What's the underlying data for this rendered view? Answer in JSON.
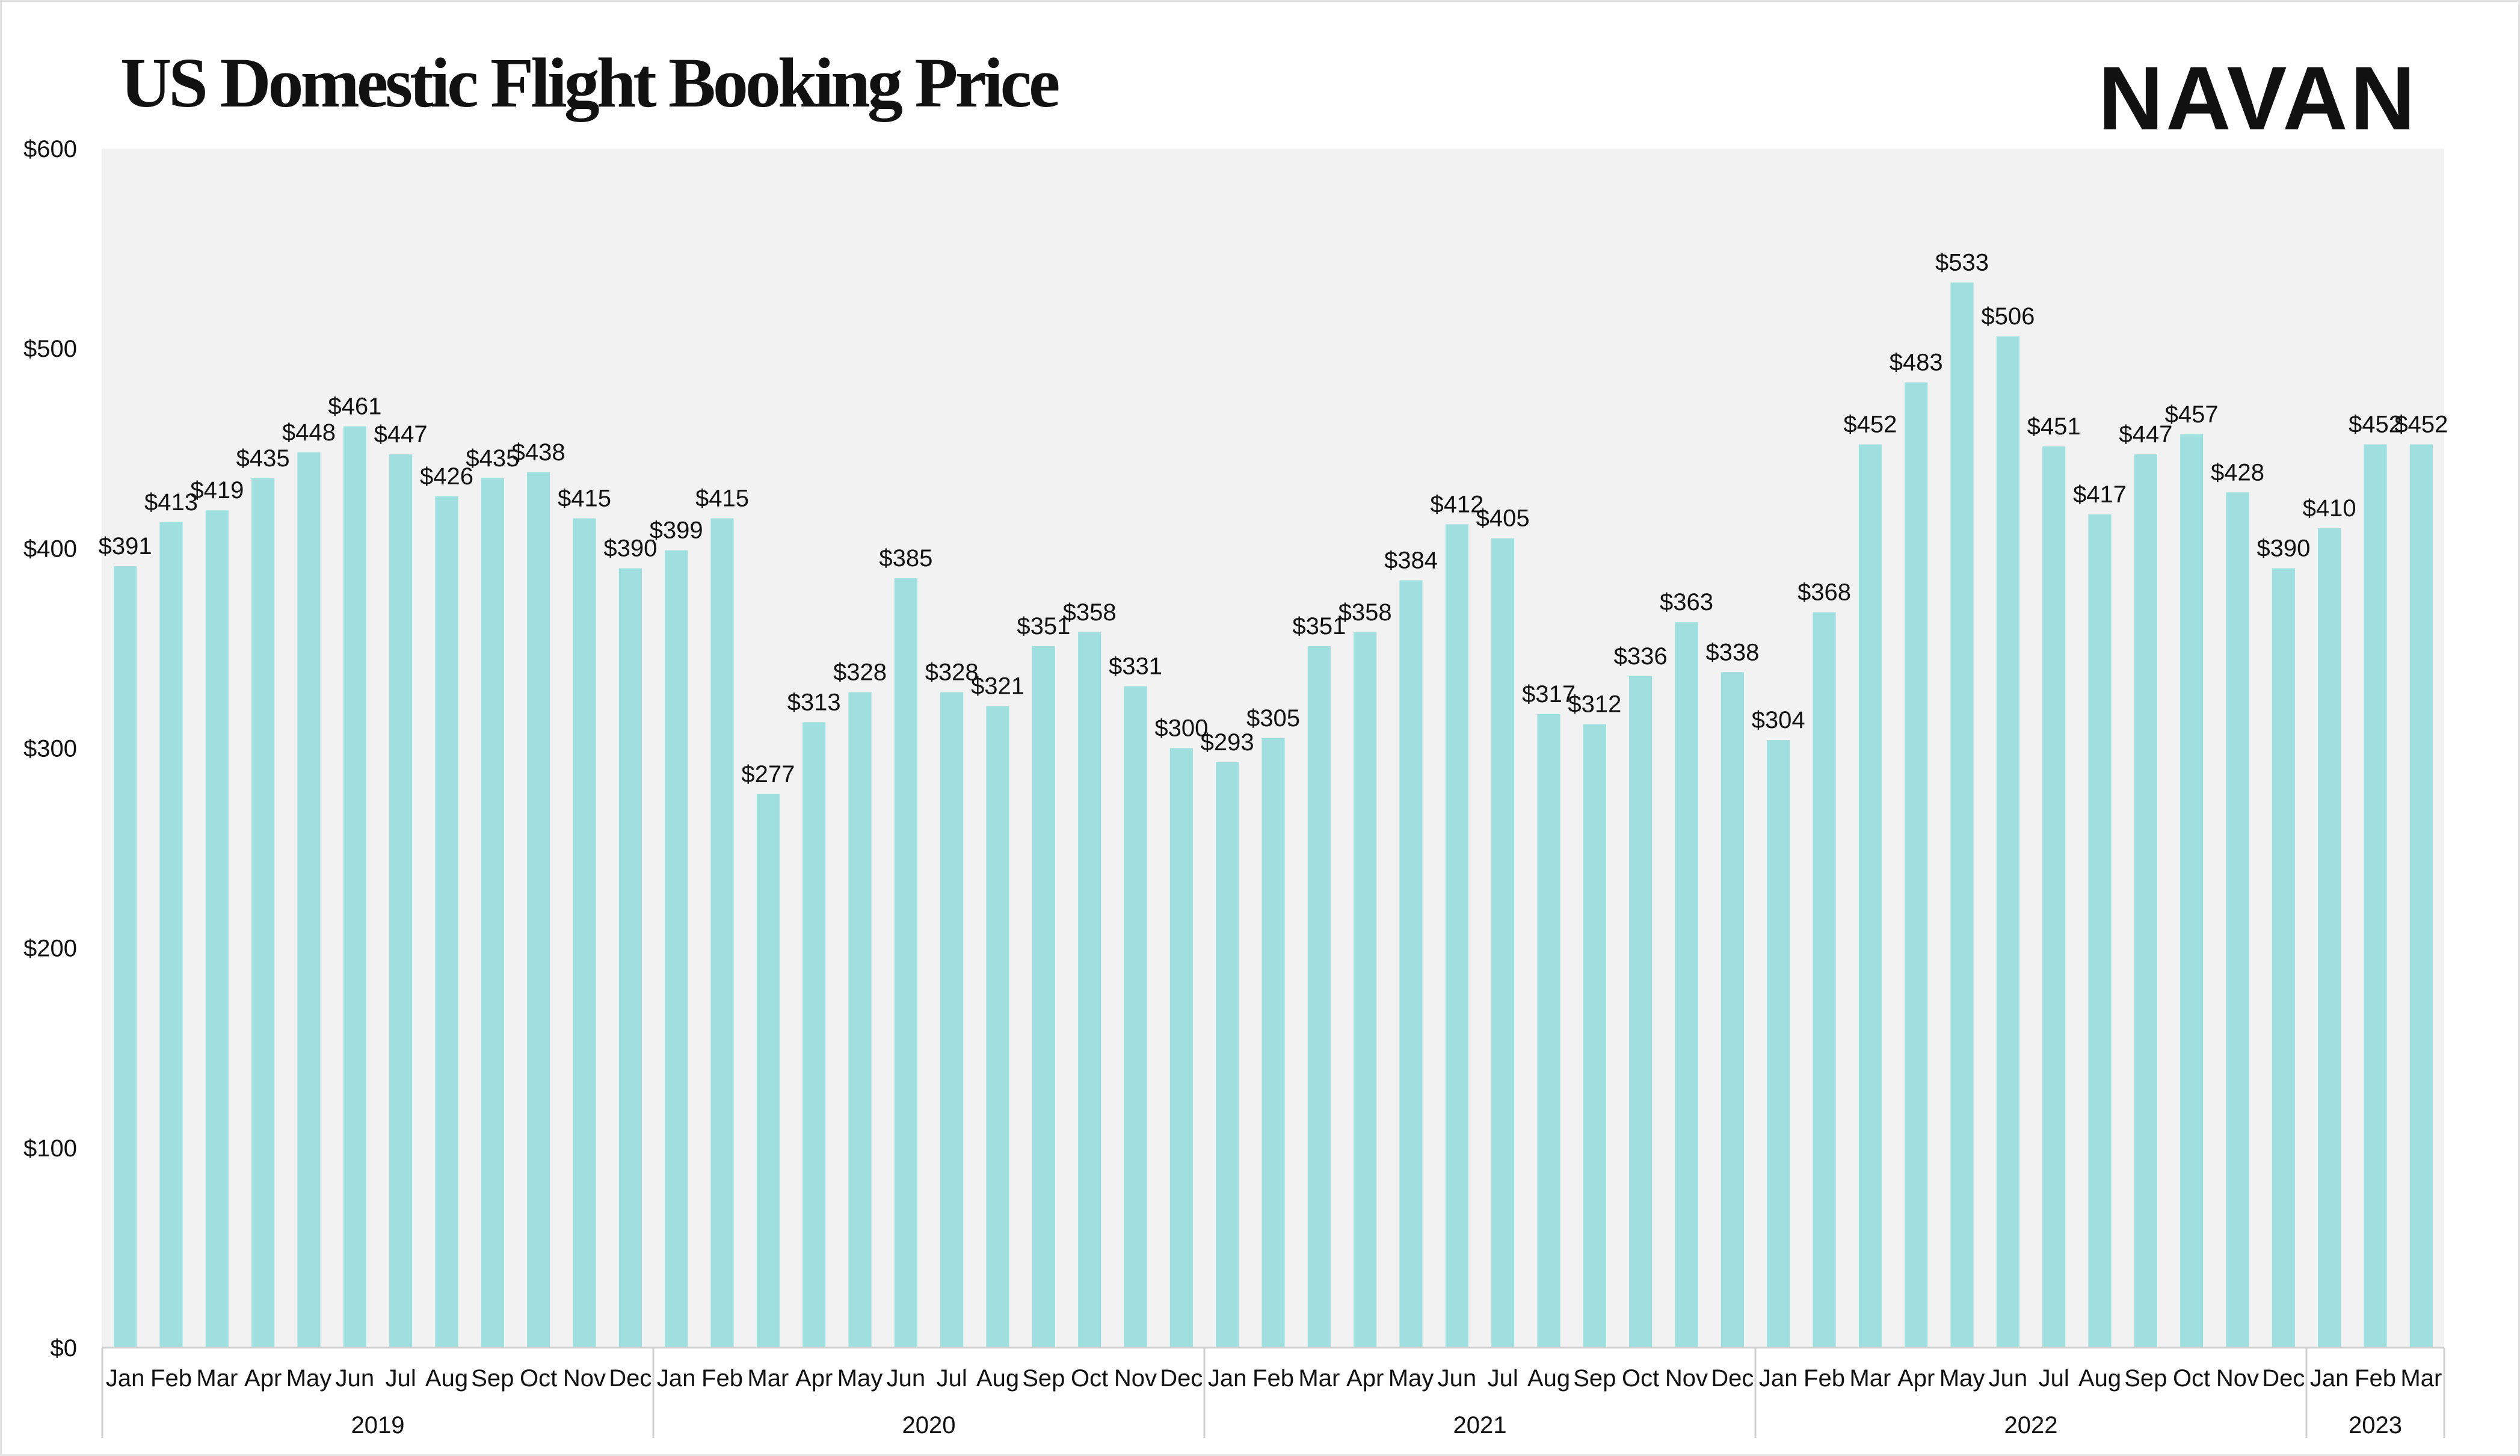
{
  "page": {
    "title": "US Domestic Flight Booking Price",
    "logo_text": "NAVAN"
  },
  "chart_data": {
    "type": "bar",
    "title": "US Domestic Flight Booking Price",
    "xlabel": "",
    "ylabel": "",
    "ylim": [
      0,
      600
    ],
    "y_ticks": [
      0,
      100,
      200,
      300,
      400,
      500,
      600
    ],
    "y_tick_labels": [
      "$0",
      "$100",
      "$200",
      "$300",
      "$400",
      "$500",
      "$600"
    ],
    "value_prefix": "$",
    "grid": false,
    "legend": "none",
    "colors": {
      "bar": "#a0dfdf",
      "plot_background": "#f2f2f2",
      "text": "#111111"
    },
    "groups": [
      {
        "year": "2019",
        "months": [
          "Jan",
          "Feb",
          "Mar",
          "Apr",
          "May",
          "Jun",
          "Jul",
          "Aug",
          "Sep",
          "Oct",
          "Nov",
          "Dec"
        ]
      },
      {
        "year": "2020",
        "months": [
          "Jan",
          "Feb",
          "Mar",
          "Apr",
          "May",
          "Jun",
          "Jul",
          "Aug",
          "Sep",
          "Oct",
          "Nov",
          "Dec"
        ]
      },
      {
        "year": "2021",
        "months": [
          "Jan",
          "Feb",
          "Mar",
          "Apr",
          "May",
          "Jun",
          "Jul",
          "Aug",
          "Sep",
          "Oct",
          "Nov",
          "Dec"
        ]
      },
      {
        "year": "2022",
        "months": [
          "Jan",
          "Feb",
          "Mar",
          "Apr",
          "May",
          "Jun",
          "Jul",
          "Aug",
          "Sep",
          "Oct",
          "Nov",
          "Dec"
        ]
      },
      {
        "year": "2023",
        "months": [
          "Jan",
          "Feb",
          "Mar"
        ]
      }
    ],
    "values": [
      391,
      413,
      419,
      435,
      448,
      461,
      447,
      426,
      435,
      438,
      415,
      390,
      399,
      415,
      277,
      313,
      328,
      385,
      328,
      321,
      351,
      358,
      331,
      300,
      293,
      305,
      351,
      358,
      384,
      412,
      405,
      317,
      312,
      336,
      363,
      338,
      304,
      368,
      452,
      483,
      533,
      506,
      451,
      417,
      447,
      457,
      428,
      390,
      410,
      452,
      452
    ]
  }
}
